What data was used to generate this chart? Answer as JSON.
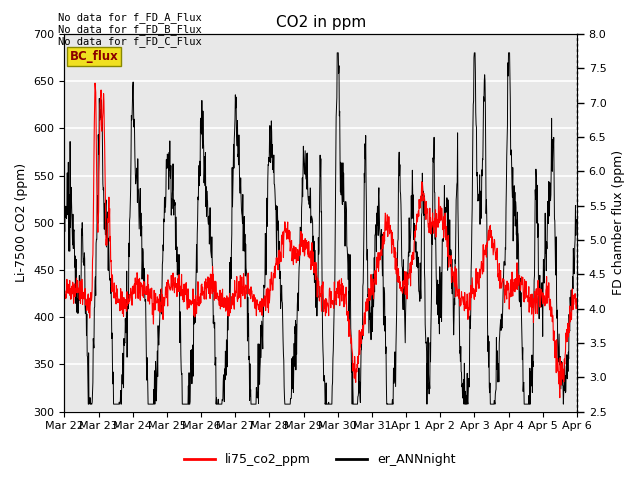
{
  "title": "CO2 in ppm",
  "ylabel_left": "Li-7500 CO2 (ppm)",
  "ylabel_right": "FD chamber flux (ppm)",
  "ylim_left": [
    300,
    700
  ],
  "ylim_right": [
    2.5,
    8.0
  ],
  "xlim": [
    0,
    15
  ],
  "xtick_labels": [
    "Mar 22",
    "Mar 23",
    "Mar 24",
    "Mar 25",
    "Mar 26",
    "Mar 27",
    "Mar 28",
    "Mar 29",
    "Mar 30",
    "Mar 31",
    "Apr 1",
    "Apr 2",
    "Apr 3",
    "Apr 4",
    "Apr 5",
    "Apr 6"
  ],
  "text_lines": [
    "No data for f_FD_A_Flux",
    "No data for f_FD_B_Flux",
    "No data for f_FD_C_Flux"
  ],
  "annotation_bc": "BC_flux",
  "legend_entries": [
    "li75_co2_ppm",
    "er_ANNnight"
  ],
  "line_co2_color": "red",
  "line_ann_color": "black",
  "bg_color": "#e8e8e8",
  "fig_bg": "white",
  "grid_color": "white",
  "right_axis_ticks": [
    2.5,
    3.0,
    3.5,
    4.0,
    4.5,
    5.0,
    5.5,
    6.0,
    6.5,
    7.0,
    7.5,
    8.0
  ],
  "left_axis_ticks": [
    300,
    350,
    400,
    450,
    500,
    550,
    600,
    650,
    700
  ]
}
